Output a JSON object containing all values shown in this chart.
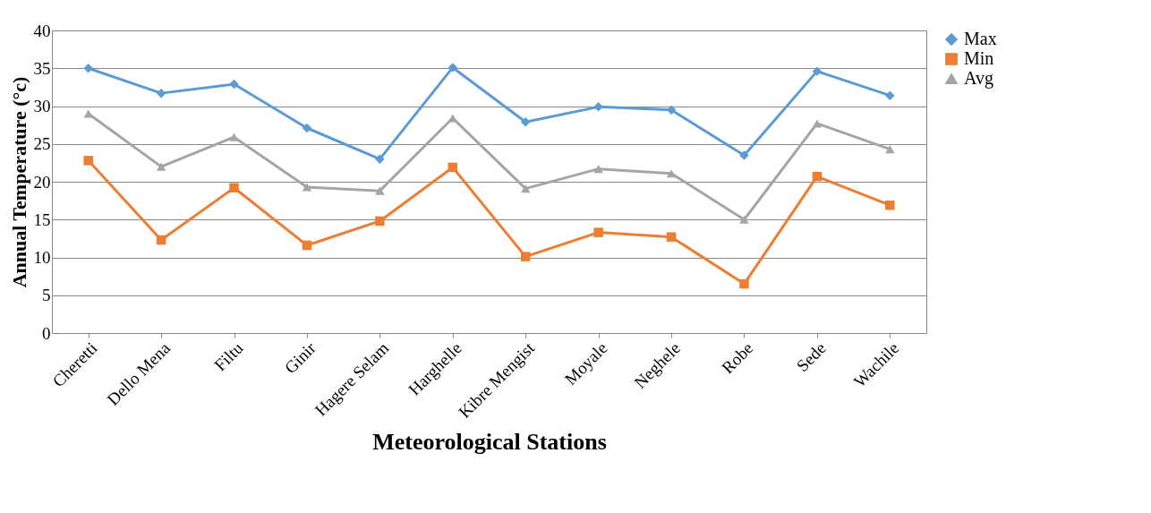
{
  "chart_data": {
    "type": "line",
    "xlabel": "Meteorological Stations",
    "ylabel": "Annual Temperature (°c)",
    "categories": [
      "Cheretti",
      "Dello Mena",
      "Filtu",
      "Ginir",
      "Hagere Selam",
      "Harghelle",
      "Kibre Mengist",
      "Moyale",
      "Neghele",
      "Robe",
      "Sede",
      "Wachile"
    ],
    "series": [
      {
        "name": "Max",
        "color": "#5b9bd5",
        "marker": "diamond",
        "values": [
          35.0,
          31.7,
          32.9,
          27.1,
          23.0,
          35.1,
          27.9,
          29.9,
          29.5,
          23.5,
          34.6,
          31.4
        ]
      },
      {
        "name": "Min",
        "color": "#ed7d31",
        "marker": "square",
        "values": [
          22.8,
          12.3,
          19.2,
          11.6,
          14.8,
          21.9,
          10.1,
          13.3,
          12.7,
          6.5,
          20.7,
          16.9
        ]
      },
      {
        "name": "Avg",
        "color": "#a5a5a5",
        "marker": "triangle",
        "values": [
          29.0,
          22.0,
          25.9,
          19.3,
          18.8,
          28.4,
          19.1,
          21.7,
          21.1,
          15.0,
          27.7,
          24.3
        ]
      }
    ],
    "ylim": [
      0,
      40
    ],
    "yticks": [
      0,
      5,
      10,
      15,
      20,
      25,
      30,
      35,
      40
    ],
    "grid": "y",
    "legend": "right",
    "line_style": "solid"
  }
}
